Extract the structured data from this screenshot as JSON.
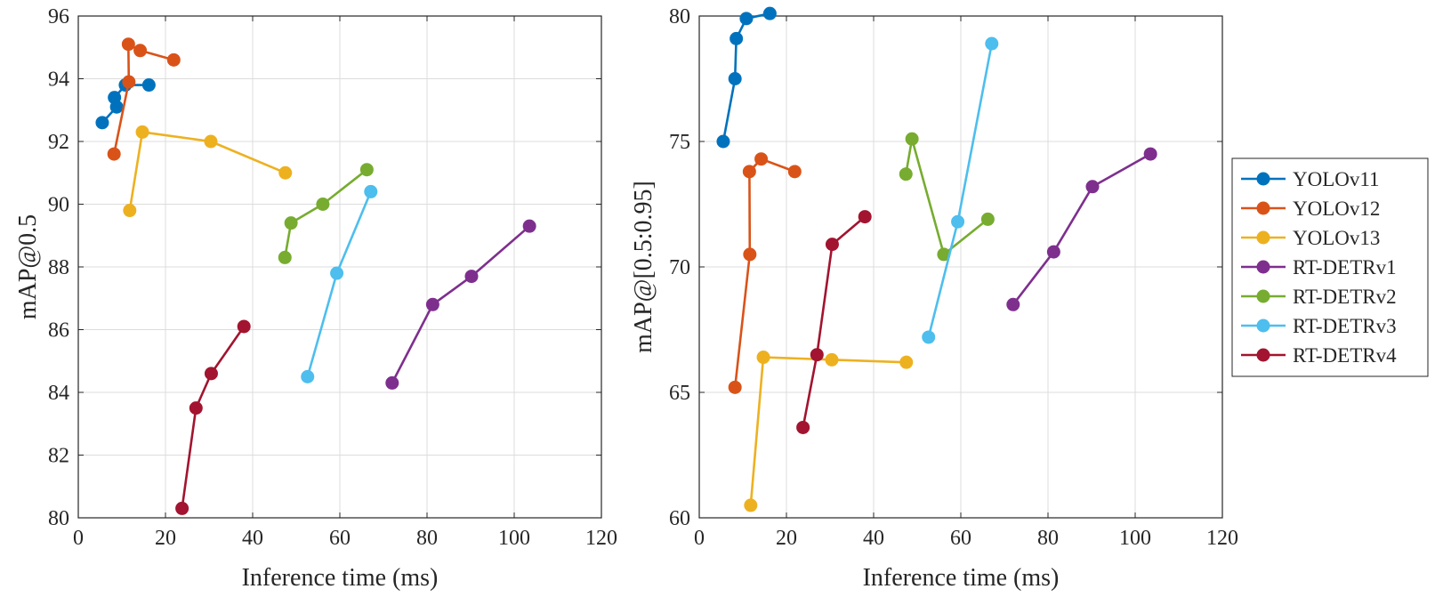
{
  "chart_data": [
    {
      "type": "line",
      "xlabel": "Inference time (ms)",
      "ylabel": "mAP@0.5",
      "xlim": [
        0,
        120
      ],
      "ylim": [
        80,
        96
      ],
      "xticks": [
        "0",
        "20",
        "40",
        "60",
        "80",
        "100",
        "120"
      ],
      "yticks": [
        "80",
        "82",
        "84",
        "86",
        "88",
        "90",
        "92",
        "94",
        "96"
      ],
      "grid": true,
      "series": [
        {
          "name": "YOLOv11",
          "color": "#0072BD",
          "x": [
            5.5,
            8.8,
            8.3,
            10.8,
            16.2
          ],
          "y": [
            92.6,
            93.1,
            93.4,
            93.8,
            93.8
          ]
        },
        {
          "name": "YOLOv12",
          "color": "#D95319",
          "x": [
            8.2,
            11.6,
            11.5,
            14.2,
            21.9
          ],
          "y": [
            91.6,
            93.9,
            95.1,
            94.9,
            94.6
          ]
        },
        {
          "name": "YOLOv13",
          "color": "#EDB120",
          "x": [
            11.8,
            14.7,
            30.4,
            47.5
          ],
          "y": [
            89.8,
            92.3,
            92.0,
            91.0
          ]
        },
        {
          "name": "RT-DETRv1",
          "color": "#7E2F8E",
          "x": [
            72.0,
            81.3,
            90.2,
            103.5
          ],
          "y": [
            84.3,
            86.8,
            87.7,
            89.3
          ]
        },
        {
          "name": "RT-DETRv2",
          "color": "#77AC30",
          "x": [
            47.4,
            48.8,
            56.1,
            66.2
          ],
          "y": [
            88.3,
            89.4,
            90.0,
            91.1
          ]
        },
        {
          "name": "RT-DETRv3",
          "color": "#4DBEEE",
          "x": [
            52.6,
            59.3,
            67.1
          ],
          "y": [
            84.5,
            87.8,
            90.4
          ]
        },
        {
          "name": "RT-DETRv4",
          "color": "#A2142F",
          "x": [
            23.8,
            27.0,
            30.5,
            38.0
          ],
          "y": [
            80.3,
            83.5,
            84.6,
            86.1
          ]
        }
      ]
    },
    {
      "type": "line",
      "xlabel": "Inference time (ms)",
      "ylabel": "mAP@[0.5:0.95]",
      "xlim": [
        0,
        120
      ],
      "ylim": [
        60,
        80
      ],
      "xticks": [
        "0",
        "20",
        "40",
        "60",
        "80",
        "100",
        "120"
      ],
      "yticks": [
        "60",
        "65",
        "70",
        "75",
        "80"
      ],
      "grid": true,
      "legend_position": "right",
      "series": [
        {
          "name": "YOLOv11",
          "color": "#0072BD",
          "x": [
            5.5,
            8.2,
            8.5,
            10.8,
            16.2
          ],
          "y": [
            75.0,
            77.5,
            79.1,
            79.9,
            80.1
          ]
        },
        {
          "name": "YOLOv12",
          "color": "#D95319",
          "x": [
            8.2,
            11.6,
            11.5,
            14.2,
            21.9
          ],
          "y": [
            65.2,
            70.5,
            73.8,
            74.3,
            73.8
          ]
        },
        {
          "name": "YOLOv13",
          "color": "#EDB120",
          "x": [
            11.8,
            14.7,
            30.4,
            47.5
          ],
          "y": [
            60.5,
            66.4,
            66.3,
            66.2
          ]
        },
        {
          "name": "RT-DETRv1",
          "color": "#7E2F8E",
          "x": [
            72.0,
            81.3,
            90.2,
            103.5
          ],
          "y": [
            68.5,
            70.6,
            73.2,
            74.5
          ]
        },
        {
          "name": "RT-DETRv2",
          "color": "#77AC30",
          "x": [
            47.4,
            48.8,
            56.1,
            66.2
          ],
          "y": [
            73.7,
            75.1,
            70.5,
            71.9
          ]
        },
        {
          "name": "RT-DETRv3",
          "color": "#4DBEEE",
          "x": [
            52.6,
            59.3,
            67.1
          ],
          "y": [
            67.2,
            71.8,
            78.9
          ]
        },
        {
          "name": "RT-DETRv4",
          "color": "#A2142F",
          "x": [
            23.8,
            27.0,
            30.5,
            38.0
          ],
          "y": [
            63.6,
            66.5,
            70.9,
            72.0
          ]
        }
      ]
    }
  ]
}
